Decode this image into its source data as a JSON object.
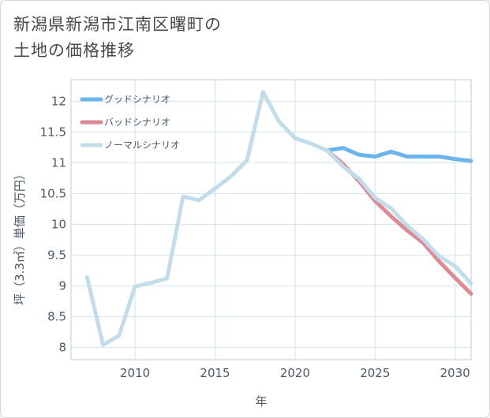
{
  "title_line1": "新潟県新潟市江南区曙町の",
  "title_line2": "土地の価格推移",
  "chart_data": {
    "type": "line",
    "xlabel": "年",
    "ylabel": "坪（3.3㎡）単価（万円）",
    "xlim": [
      2006,
      2031
    ],
    "ylim": [
      7.8,
      12.35
    ],
    "x_ticks": [
      2010,
      2015,
      2020,
      2025,
      2030
    ],
    "x_tick_labels": [
      "2010",
      "2015",
      "2020",
      "2025",
      "2030"
    ],
    "y_ticks": [
      8,
      8.5,
      9,
      9.5,
      10,
      10.5,
      11,
      11.5,
      12
    ],
    "y_tick_labels": [
      "8",
      "8.5",
      "9",
      "9.5",
      "10",
      "10.5",
      "11",
      "11.5",
      "12"
    ],
    "grid": true,
    "legend_position": "top-left",
    "series": [
      {
        "name": "グッドシナリオ",
        "color": "#6ab4ec",
        "x": [
          2022,
          2023,
          2024,
          2025,
          2026,
          2027,
          2028,
          2029,
          2030,
          2031
        ],
        "y": [
          11.2,
          11.24,
          11.13,
          11.1,
          11.18,
          11.1,
          11.1,
          11.1,
          11.06,
          11.03
        ]
      },
      {
        "name": "バッドシナリオ",
        "color": "#dc8a94",
        "x": [
          2022,
          2023,
          2024,
          2025,
          2026,
          2027,
          2028,
          2029,
          2030,
          2031
        ],
        "y": [
          11.2,
          10.98,
          10.7,
          10.38,
          10.13,
          9.9,
          9.7,
          9.4,
          9.13,
          8.87
        ]
      },
      {
        "name": "ノーマルシナリオ",
        "color": "#c2dcea",
        "x": [
          2007,
          2008,
          2009,
          2010,
          2011,
          2012,
          2013,
          2014,
          2015,
          2016,
          2017,
          2018,
          2019,
          2020,
          2021,
          2022,
          2023,
          2024,
          2025,
          2026,
          2027,
          2028,
          2029,
          2030,
          2031
        ],
        "y": [
          9.14,
          8.04,
          8.19,
          8.99,
          9.05,
          9.12,
          10.45,
          10.39,
          10.58,
          10.78,
          11.04,
          12.15,
          11.67,
          11.4,
          11.31,
          11.2,
          10.94,
          10.74,
          10.43,
          10.26,
          9.98,
          9.76,
          9.48,
          9.32,
          9.04
        ]
      }
    ]
  }
}
